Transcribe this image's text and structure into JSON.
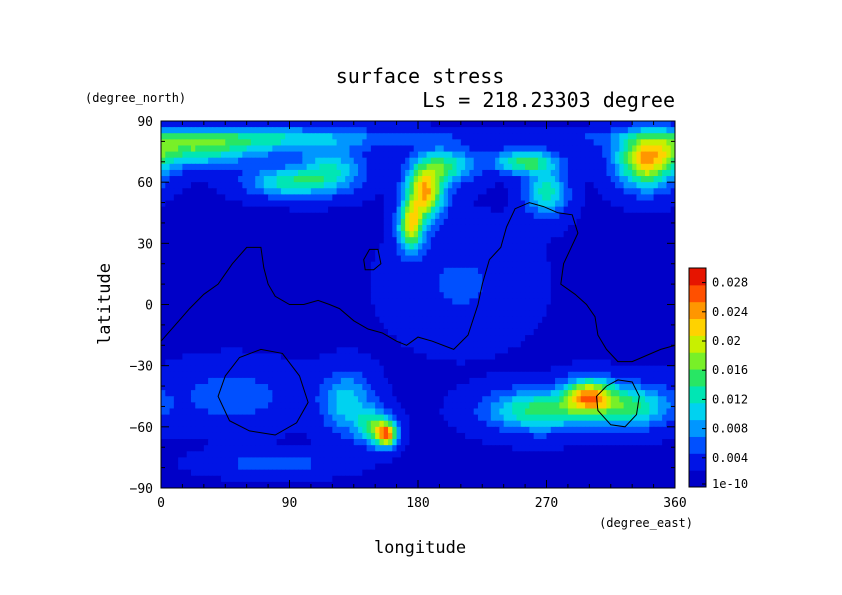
{
  "chart_data": {
    "type": "heatmap",
    "title": "surface stress",
    "subtitle": "Ls = 218.23303 degree",
    "xlabel": "longitude",
    "ylabel": "latitude",
    "x_unit": "(degree_east)",
    "y_unit": "(degree_north)",
    "xlim": [
      0,
      360
    ],
    "ylim": [
      -90,
      90
    ],
    "x_ticks": [
      "0",
      "90",
      "180",
      "270",
      "360"
    ],
    "y_ticks": [
      "90",
      "60",
      "30",
      "0",
      "−30",
      "−60",
      "−90"
    ],
    "colorbar": {
      "range": [
        0,
        0.03
      ],
      "tick_labels": [
        "1e-10",
        "0.004",
        "0.008",
        "0.012",
        "0.016",
        "0.02",
        "0.024",
        "0.028"
      ],
      "colors": [
        "#0000c8",
        "#0014e6",
        "#0050ff",
        "#0096ff",
        "#00d2f0",
        "#00e6b4",
        "#28e664",
        "#78f028",
        "#c8f000",
        "#ffd200",
        "#ff9600",
        "#ff5000",
        "#e61400"
      ]
    },
    "background_level": 0.002,
    "blobs": [
      {
        "lon": 20,
        "lat": 76,
        "slon": 30,
        "slat": 6,
        "v": 0.011
      },
      {
        "lon": 75,
        "lat": 80,
        "slon": 45,
        "slat": 5,
        "v": 0.006
      },
      {
        "lon": 90,
        "lat": 60,
        "slon": 20,
        "slat": 5,
        "v": 0.011
      },
      {
        "lon": 120,
        "lat": 66,
        "slon": 15,
        "slat": 7,
        "v": 0.009
      },
      {
        "lon": 185,
        "lat": 55,
        "slon": 9,
        "slat": 9,
        "v": 0.021
      },
      {
        "lon": 175,
        "lat": 38,
        "slon": 6,
        "slat": 8,
        "v": 0.018
      },
      {
        "lon": 200,
        "lat": 68,
        "slon": 14,
        "slat": 6,
        "v": 0.011
      },
      {
        "lon": 255,
        "lat": 70,
        "slon": 15,
        "slat": 4,
        "v": 0.013
      },
      {
        "lon": 270,
        "lat": 55,
        "slon": 10,
        "slat": 8,
        "v": 0.011
      },
      {
        "lon": 340,
        "lat": 70,
        "slon": 14,
        "slat": 9,
        "v": 0.019
      },
      {
        "lon": 60,
        "lat": 82,
        "slon": 120,
        "slat": 3,
        "v": 0.004
      },
      {
        "lon": 210,
        "lat": 10,
        "slon": 30,
        "slat": 18,
        "v": 0.003
      },
      {
        "lon": 50,
        "lat": -45,
        "slon": 30,
        "slat": 10,
        "v": 0.004
      },
      {
        "lon": 130,
        "lat": -48,
        "slon": 12,
        "slat": 10,
        "v": 0.009
      },
      {
        "lon": 150,
        "lat": -60,
        "slon": 9,
        "slat": 6,
        "v": 0.012
      },
      {
        "lon": 158,
        "lat": -64,
        "slon": 5,
        "slat": 4,
        "v": 0.019
      },
      {
        "lon": 80,
        "lat": -78,
        "slon": 30,
        "slat": 4,
        "v": 0.004
      },
      {
        "lon": 265,
        "lat": -52,
        "slon": 25,
        "slat": 7,
        "v": 0.013
      },
      {
        "lon": 300,
        "lat": -45,
        "slon": 12,
        "slat": 6,
        "v": 0.019
      },
      {
        "lon": 330,
        "lat": -50,
        "slon": 18,
        "slat": 7,
        "v": 0.012
      }
    ],
    "contours": [
      {
        "name": "dichotomy",
        "closed": false,
        "points": [
          [
            0,
            -18
          ],
          [
            10,
            -10
          ],
          [
            20,
            -2
          ],
          [
            30,
            5
          ],
          [
            40,
            10
          ],
          [
            50,
            20
          ],
          [
            60,
            28
          ],
          [
            70,
            28
          ],
          [
            72,
            18
          ],
          [
            75,
            10
          ],
          [
            80,
            4
          ],
          [
            90,
            0
          ],
          [
            100,
            0
          ],
          [
            110,
            2
          ],
          [
            118,
            0
          ],
          [
            125,
            -2
          ],
          [
            135,
            -8
          ],
          [
            145,
            -12
          ],
          [
            155,
            -14
          ],
          [
            165,
            -18
          ],
          [
            172,
            -20
          ],
          [
            180,
            -16
          ],
          [
            190,
            -18
          ],
          [
            205,
            -22
          ],
          [
            215,
            -15
          ],
          [
            222,
            0
          ],
          [
            225,
            10
          ],
          [
            230,
            22
          ],
          [
            238,
            28
          ],
          [
            242,
            38
          ],
          [
            248,
            47
          ],
          [
            258,
            50
          ],
          [
            268,
            48
          ],
          [
            278,
            45
          ],
          [
            288,
            44
          ],
          [
            292,
            35
          ],
          [
            282,
            20
          ],
          [
            280,
            10
          ],
          [
            290,
            5
          ],
          [
            298,
            0
          ],
          [
            304,
            -6
          ],
          [
            306,
            -15
          ],
          [
            312,
            -22
          ],
          [
            320,
            -28
          ],
          [
            330,
            -28
          ],
          [
            340,
            -25
          ],
          [
            350,
            -22
          ],
          [
            360,
            -20
          ]
        ]
      },
      {
        "name": "small-closed-north",
        "closed": true,
        "points": [
          [
            142,
            22
          ],
          [
            146,
            27
          ],
          [
            152,
            27
          ],
          [
            154,
            20
          ],
          [
            149,
            17
          ],
          [
            143,
            17
          ]
        ]
      },
      {
        "name": "hellas",
        "closed": true,
        "points": [
          [
            40,
            -45
          ],
          [
            45,
            -35
          ],
          [
            55,
            -26
          ],
          [
            70,
            -22
          ],
          [
            85,
            -24
          ],
          [
            97,
            -35
          ],
          [
            103,
            -48
          ],
          [
            95,
            -58
          ],
          [
            80,
            -64
          ],
          [
            62,
            -62
          ],
          [
            48,
            -57
          ]
        ]
      },
      {
        "name": "argyre",
        "closed": true,
        "points": [
          [
            305,
            -45
          ],
          [
            312,
            -40
          ],
          [
            320,
            -37
          ],
          [
            330,
            -38
          ],
          [
            335,
            -45
          ],
          [
            333,
            -54
          ],
          [
            325,
            -60
          ],
          [
            315,
            -59
          ],
          [
            306,
            -52
          ]
        ]
      }
    ]
  }
}
